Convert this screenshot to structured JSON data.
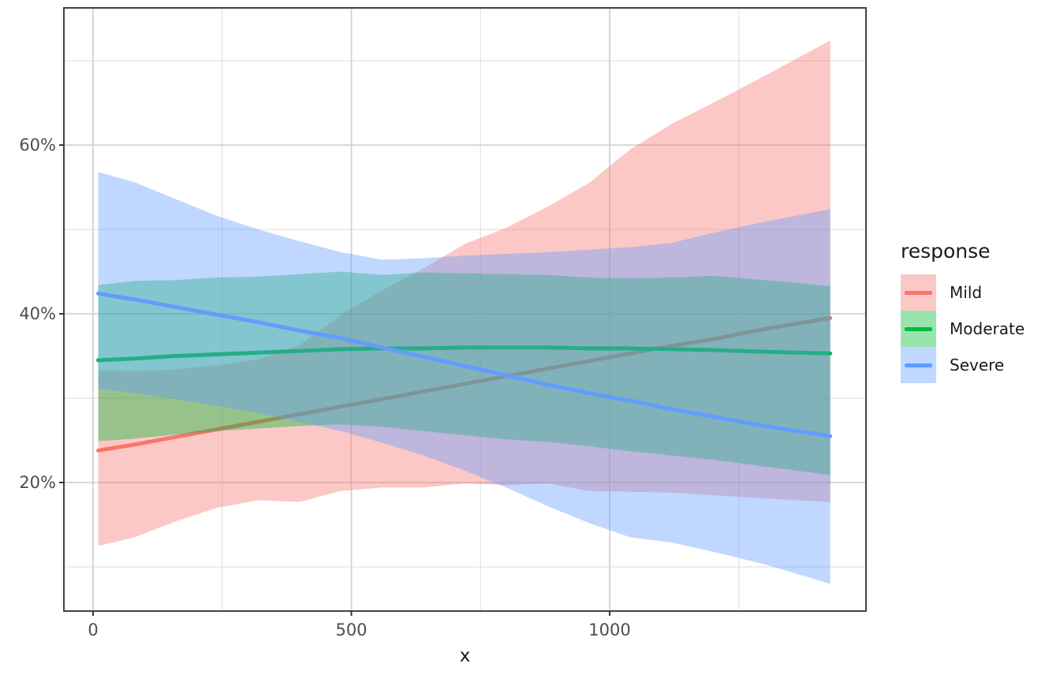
{
  "legend": {
    "title": "response",
    "items": [
      {
        "label": "Mild",
        "line_color": "#F8766D",
        "fill_rgba": "rgba(248,118,109,0.4)"
      },
      {
        "label": "Moderate",
        "line_color": "#00BA38",
        "fill_rgba": "rgba(0,186,56,0.4)"
      },
      {
        "label": "Severe",
        "line_color": "#619CFF",
        "fill_rgba": "rgba(97,156,255,0.4)"
      }
    ]
  },
  "axes": {
    "x": {
      "title": "x",
      "major": [
        {
          "value": 0,
          "label": "0"
        },
        {
          "value": 500,
          "label": "500"
        },
        {
          "value": 1000,
          "label": "1000"
        }
      ],
      "minor": [
        250,
        750,
        1250
      ]
    },
    "y": {
      "title": "",
      "major": [
        {
          "value": 20,
          "label": "20%"
        },
        {
          "value": 40,
          "label": "40%"
        },
        {
          "value": 60,
          "label": "60%"
        }
      ],
      "minor": [
        10,
        30,
        50,
        70
      ]
    }
  },
  "chart_data": {
    "type": "line",
    "subtype": "smoothed trend lines with confidence ribbons (ggplot-style)",
    "title": "",
    "xlabel": "x",
    "ylabel": "",
    "y_unit": "percent",
    "legend_title": "response",
    "legend_position": "right",
    "grid": true,
    "x_domain": [
      -57,
      1496
    ],
    "y_domain_pct": [
      4.8,
      76.3
    ],
    "x": [
      10,
      80,
      160,
      240,
      320,
      400,
      480,
      560,
      640,
      720,
      800,
      880,
      960,
      1040,
      1120,
      1200,
      1300,
      1427
    ],
    "series": [
      {
        "name": "Mild",
        "line_color": "#F8766D",
        "fill_rgba": "rgba(248,118,109,0.4)",
        "line": [
          23.8,
          24.5,
          25.4,
          26.3,
          27.2,
          28.1,
          29.0,
          29.9,
          30.8,
          31.7,
          32.6,
          33.5,
          34.4,
          35.3,
          36.2,
          37.0,
          38.2,
          39.5
        ],
        "upper": [
          33.3,
          33.2,
          33.4,
          33.9,
          34.6,
          36.3,
          39.9,
          42.8,
          45.4,
          48.3,
          50.2,
          52.7,
          55.5,
          59.5,
          62.5,
          65.0,
          68.2,
          72.4
        ],
        "lower": [
          12.5,
          13.5,
          15.4,
          17.0,
          17.9,
          17.7,
          19.0,
          19.4,
          19.4,
          19.9,
          19.7,
          19.9,
          19.0,
          18.9,
          18.8,
          18.5,
          18.1,
          17.7
        ]
      },
      {
        "name": "Moderate",
        "line_color": "#00BA38",
        "fill_rgba": "rgba(0,186,56,0.4)",
        "line": [
          34.5,
          34.7,
          35.0,
          35.2,
          35.4,
          35.6,
          35.8,
          35.9,
          35.9,
          36.0,
          36.0,
          36.0,
          35.9,
          35.9,
          35.8,
          35.7,
          35.5,
          35.3
        ],
        "upper": [
          43.4,
          43.9,
          44.0,
          44.3,
          44.4,
          44.7,
          45.0,
          44.6,
          44.9,
          44.8,
          44.7,
          44.6,
          44.3,
          44.2,
          44.3,
          44.5,
          44.0,
          43.3
        ],
        "lower": [
          24.9,
          25.2,
          25.7,
          26.1,
          26.4,
          26.7,
          26.9,
          26.6,
          26.1,
          25.6,
          25.1,
          24.8,
          24.3,
          23.7,
          23.2,
          22.7,
          21.9,
          20.9
        ]
      },
      {
        "name": "Severe",
        "line_color": "#619CFF",
        "fill_rgba": "rgba(97,156,255,0.4)",
        "line": [
          42.4,
          41.7,
          40.8,
          39.9,
          39.0,
          38.0,
          37.1,
          36.0,
          34.9,
          33.8,
          32.7,
          31.6,
          30.6,
          29.7,
          28.7,
          27.8,
          26.7,
          25.5
        ],
        "upper": [
          56.8,
          55.6,
          53.6,
          51.6,
          50.0,
          48.6,
          47.3,
          46.4,
          46.6,
          46.9,
          47.1,
          47.3,
          47.6,
          47.9,
          48.4,
          49.6,
          50.9,
          52.4
        ],
        "lower": [
          31.1,
          30.6,
          29.9,
          29.1,
          28.2,
          27.2,
          26.1,
          24.7,
          23.2,
          21.4,
          19.4,
          17.2,
          15.2,
          13.5,
          12.9,
          11.8,
          10.3,
          8.0
        ]
      }
    ]
  }
}
